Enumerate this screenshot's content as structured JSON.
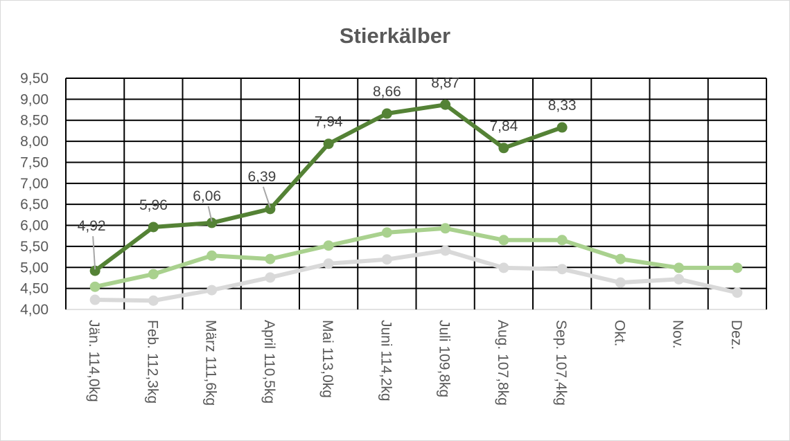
{
  "chart_data": {
    "type": "line",
    "title": "Stierkälber",
    "categories": [
      "Jän.  114,0kg",
      "Feb.  112,3kg",
      "März 111,6kg",
      "April  110,5kg",
      "Mai   113,0kg",
      "Juni   114,2kg",
      "Juli   109,8kg",
      "Aug.  107,8kg",
      "Sep.  107,4kg",
      "Okt.",
      "Nov.",
      "Dez."
    ],
    "ylim": [
      4.0,
      9.5
    ],
    "yticks": [
      "4,00",
      "4,50",
      "5,00",
      "5,50",
      "6,00",
      "6,50",
      "7,00",
      "7,50",
      "8,00",
      "8,50",
      "9,00",
      "9,50"
    ],
    "grid": true,
    "legend": "none",
    "series": [
      {
        "color": "#d9d9d9",
        "values": [
          4.23,
          4.21,
          4.46,
          4.76,
          5.09,
          5.19,
          5.4,
          4.99,
          4.96,
          4.64,
          4.72,
          4.4
        ],
        "labels": false
      },
      {
        "color": "#a9d18e",
        "values": [
          4.54,
          4.84,
          5.28,
          5.2,
          5.52,
          5.83,
          5.93,
          5.65,
          5.65,
          5.2,
          4.99,
          4.99
        ],
        "labels": false
      },
      {
        "color": "#548235",
        "values": [
          4.92,
          5.96,
          6.06,
          6.39,
          7.94,
          8.66,
          8.87,
          7.84,
          8.33,
          null,
          null,
          null
        ],
        "labels": true,
        "data_labels": [
          "4,92",
          "5,96",
          "6,06",
          "6,39",
          "7,94",
          "8,66",
          "8,87",
          "7,84",
          "8,33"
        ]
      }
    ]
  }
}
